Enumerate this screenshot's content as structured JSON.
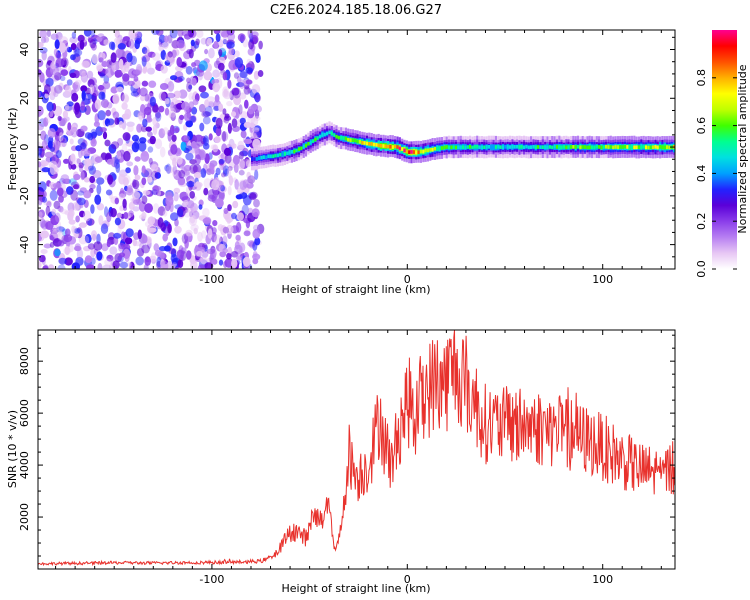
{
  "title": "C2E6.2024.185.18.06.G27",
  "chart_data": [
    {
      "type": "heatmap",
      "title": "C2E6.2024.185.18.06.G27",
      "xlabel": "Height of straight line (km)",
      "ylabel": "Frequency (Hz)",
      "xlim": [
        -189,
        137
      ],
      "ylim": [
        -50,
        48
      ],
      "xticks": [
        -100,
        0,
        100
      ],
      "yticks": [
        -40,
        -20,
        0,
        20,
        40
      ],
      "colorbar": {
        "label": "Normalized spectral amplitude",
        "range": [
          0,
          1
        ],
        "ticks": [
          0.0,
          0.2,
          0.4,
          0.6,
          0.8
        ],
        "tick_labels": [
          "0.0",
          "0.2",
          "0.4",
          "0.6",
          "0.8"
        ],
        "colors": [
          "#ffffff",
          "#e7c6f4",
          "#b77ff2",
          "#8a3dea",
          "#5a00d8",
          "#2222ff",
          "#00a0ff",
          "#00e0e0",
          "#00ff90",
          "#40ff00",
          "#c0ff00",
          "#ffff00",
          "#ffb000",
          "#ff5000",
          "#ff0000",
          "#ff0090"
        ]
      },
      "noise_region": {
        "x_from": -189,
        "x_to": -75,
        "amplitude": 0.2
      },
      "signal_ridge": {
        "x": [
          -80,
          -72,
          -64,
          -56,
          -50,
          -44,
          -40,
          -36,
          -30,
          -24,
          -18,
          -12,
          -6,
          0,
          6,
          12,
          20,
          40,
          60,
          80,
          100,
          120,
          137
        ],
        "freq": [
          -5,
          -4,
          -3,
          -1,
          2,
          5,
          6,
          4,
          3,
          2,
          1,
          0.5,
          0,
          -2,
          -2,
          -1,
          0,
          0,
          0,
          0,
          0,
          0,
          0
        ],
        "amplitude": [
          0.35,
          0.45,
          0.5,
          0.55,
          0.55,
          0.5,
          0.5,
          0.55,
          0.6,
          0.7,
          0.75,
          0.8,
          0.85,
          0.9,
          0.8,
          0.7,
          0.55,
          0.5,
          0.5,
          0.55,
          0.6,
          0.65,
          0.7
        ]
      }
    },
    {
      "type": "line",
      "xlabel": "Height of straight line (km)",
      "ylabel": "SNR (10 * v/v)",
      "xlim": [
        -189,
        137
      ],
      "ylim": [
        0,
        9200
      ],
      "xticks": [
        -100,
        0,
        100
      ],
      "yticks": [
        2000,
        4000,
        6000,
        8000
      ],
      "series": [
        {
          "name": "SNR",
          "color": "#e8312c",
          "x": [
            -189,
            -170,
            -150,
            -130,
            -110,
            -90,
            -75,
            -68,
            -62,
            -58,
            -52,
            -48,
            -44,
            -40,
            -38,
            -36,
            -34,
            -30,
            -26,
            -20,
            -16,
            -14,
            -12,
            -8,
            -4,
            0,
            4,
            8,
            12,
            16,
            20,
            24,
            28,
            32,
            36,
            40,
            50,
            60,
            70,
            80,
            90,
            100,
            110,
            120,
            130,
            137
          ],
          "y": [
            200,
            220,
            240,
            230,
            250,
            260,
            300,
            500,
            1200,
            1500,
            1200,
            2000,
            1800,
            3000,
            1000,
            800,
            1500,
            4500,
            3500,
            4000,
            5200,
            6000,
            5000,
            4000,
            5500,
            6500,
            6000,
            6800,
            7000,
            7300,
            7200,
            7800,
            7500,
            6800,
            6200,
            5600,
            5500,
            5600,
            5400,
            5300,
            5000,
            4700,
            4200,
            3800,
            3700,
            3900
          ]
        }
      ]
    }
  ]
}
